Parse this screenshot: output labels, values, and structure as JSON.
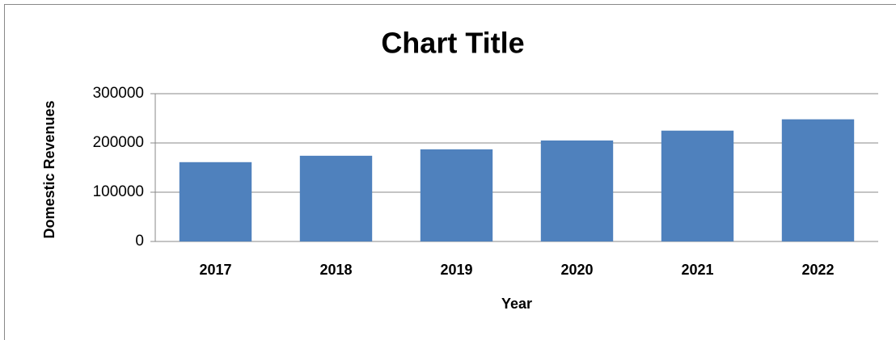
{
  "chart_data": {
    "type": "bar",
    "title": "Chart Title",
    "x_label": "Year",
    "y_label": "Domestic Revenues",
    "categories": [
      "2017",
      "2018",
      "2019",
      "2020",
      "2021",
      "2022"
    ],
    "values": [
      161000,
      174000,
      187000,
      205000,
      225000,
      248000
    ],
    "color": "#4f81bd",
    "ylim": [
      0,
      300000
    ],
    "yticks": [
      0,
      100000,
      200000,
      300000
    ],
    "grid": true
  }
}
